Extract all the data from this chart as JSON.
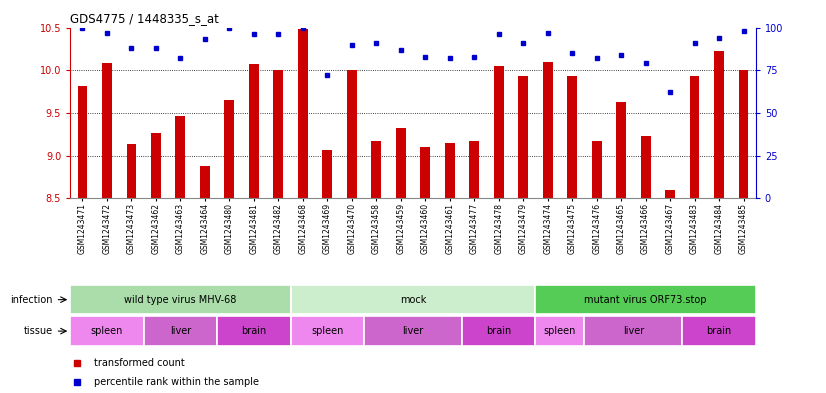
{
  "title": "GDS4775 / 1448335_s_at",
  "samples": [
    "GSM1243471",
    "GSM1243472",
    "GSM1243473",
    "GSM1243462",
    "GSM1243463",
    "GSM1243464",
    "GSM1243480",
    "GSM1243481",
    "GSM1243482",
    "GSM1243468",
    "GSM1243469",
    "GSM1243470",
    "GSM1243458",
    "GSM1243459",
    "GSM1243460",
    "GSM1243461",
    "GSM1243477",
    "GSM1243478",
    "GSM1243479",
    "GSM1243474",
    "GSM1243475",
    "GSM1243476",
    "GSM1243465",
    "GSM1243466",
    "GSM1243467",
    "GSM1243483",
    "GSM1243484",
    "GSM1243485"
  ],
  "transformed_count": [
    9.82,
    10.09,
    9.14,
    9.27,
    9.46,
    8.88,
    9.65,
    10.07,
    10.0,
    10.48,
    9.07,
    10.0,
    9.17,
    9.32,
    9.1,
    9.15,
    9.17,
    10.05,
    9.93,
    10.1,
    9.93,
    9.17,
    9.63,
    9.23,
    8.6,
    9.93,
    10.22,
    10.0
  ],
  "percentile": [
    100,
    97,
    88,
    88,
    82,
    93,
    100,
    96,
    96,
    100,
    72,
    90,
    91,
    87,
    83,
    82,
    83,
    96,
    91,
    97,
    85,
    82,
    84,
    79,
    62,
    91,
    94,
    98
  ],
  "ylim_left": [
    8.5,
    10.5
  ],
  "ylim_right": [
    0,
    100
  ],
  "yticks_left": [
    8.5,
    9.0,
    9.5,
    10.0,
    10.5
  ],
  "yticks_right": [
    0,
    25,
    50,
    75,
    100
  ],
  "bar_color": "#cc0000",
  "dot_color": "#0000cc",
  "infection_groups": [
    {
      "label": "wild type virus MHV-68",
      "start": 0,
      "end": 9,
      "color": "#aaddaa"
    },
    {
      "label": "mock",
      "start": 9,
      "end": 19,
      "color": "#cceecc"
    },
    {
      "label": "mutant virus ORF73.stop",
      "start": 19,
      "end": 28,
      "color": "#55cc55"
    }
  ],
  "tissue_groups": [
    {
      "label": "spleen",
      "start": 0,
      "end": 3,
      "color": "#ee88ee"
    },
    {
      "label": "liver",
      "start": 3,
      "end": 6,
      "color": "#cc66cc"
    },
    {
      "label": "brain",
      "start": 6,
      "end": 9,
      "color": "#cc44cc"
    },
    {
      "label": "spleen",
      "start": 9,
      "end": 12,
      "color": "#ee88ee"
    },
    {
      "label": "liver",
      "start": 12,
      "end": 16,
      "color": "#cc66cc"
    },
    {
      "label": "brain",
      "start": 16,
      "end": 19,
      "color": "#cc44cc"
    },
    {
      "label": "spleen",
      "start": 19,
      "end": 21,
      "color": "#ee88ee"
    },
    {
      "label": "liver",
      "start": 21,
      "end": 25,
      "color": "#cc66cc"
    },
    {
      "label": "brain",
      "start": 25,
      "end": 28,
      "color": "#cc44cc"
    }
  ]
}
